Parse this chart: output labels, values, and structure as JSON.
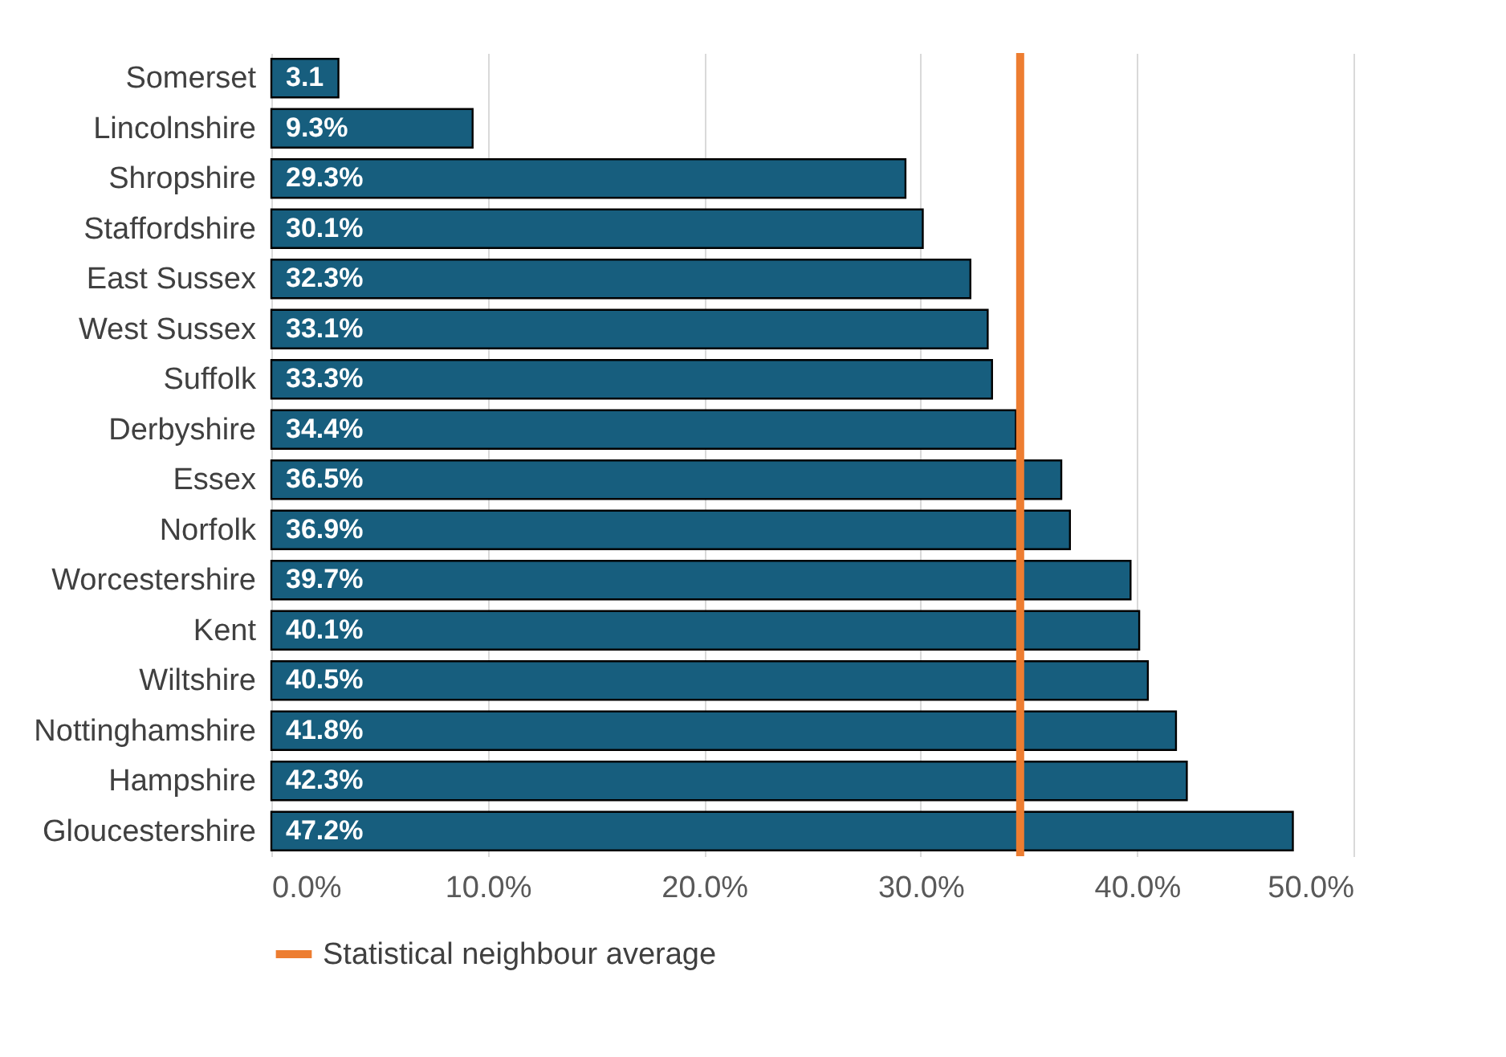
{
  "chart_data": {
    "type": "bar",
    "orientation": "horizontal",
    "categories": [
      "Somerset",
      "Lincolnshire",
      "Shropshire",
      "Staffordshire",
      "East Sussex",
      "West Sussex",
      "Suffolk",
      "Derbyshire",
      "Essex",
      "Norfolk",
      "Worcestershire",
      "Kent",
      "Wiltshire",
      "Nottinghamshire",
      "Hampshire",
      "Gloucestershire"
    ],
    "values": [
      3.1,
      9.3,
      29.3,
      30.1,
      32.3,
      33.1,
      33.3,
      34.4,
      36.5,
      36.9,
      39.7,
      40.1,
      40.5,
      41.8,
      42.3,
      47.2
    ],
    "value_labels": [
      "3.1",
      "9.3%",
      "29.3%",
      "30.1%",
      "32.3%",
      "33.1%",
      "33.3%",
      "34.4%",
      "36.5%",
      "36.9%",
      "39.7%",
      "40.1%",
      "40.5%",
      "41.8%",
      "42.3%",
      "47.2%"
    ],
    "color": "#175e7e",
    "xlim": [
      0,
      50
    ],
    "xticks": [
      {
        "value": 0,
        "label": "0.0%"
      },
      {
        "value": 10,
        "label": "10.0%"
      },
      {
        "value": 20,
        "label": "20.0%"
      },
      {
        "value": 30,
        "label": "30.0%"
      },
      {
        "value": 40,
        "label": "40.0%"
      },
      {
        "value": 50,
        "label": "50.0%"
      }
    ],
    "grid": "x",
    "legend": "bottom",
    "ref_lines": [
      {
        "axis": "x",
        "value": 34.6,
        "label": "Statistical neighbour average",
        "color": "#ed7d31"
      }
    ]
  }
}
